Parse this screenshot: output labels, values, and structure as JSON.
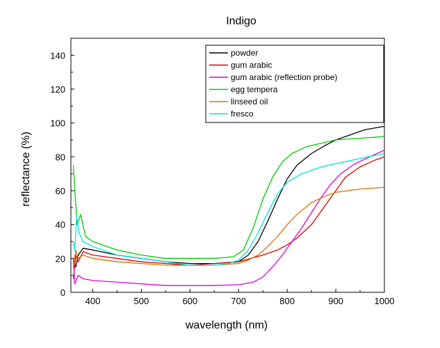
{
  "chart_data": {
    "type": "line",
    "title": "Indigo",
    "xlabel": "wavelength (nm)",
    "ylabel": "reflectance (%)",
    "xlim": [
      355,
      1000
    ],
    "ylim": [
      0,
      150
    ],
    "x_ticks": [
      400,
      500,
      600,
      700,
      800,
      900,
      1000
    ],
    "y_ticks": [
      0,
      20,
      40,
      60,
      80,
      100,
      120,
      140
    ],
    "legend_position": "top-right",
    "grid": false,
    "series": [
      {
        "name": "powder",
        "color": "#000000",
        "points": [
          [
            360,
            18
          ],
          [
            365,
            15
          ],
          [
            370,
            22
          ],
          [
            380,
            26
          ],
          [
            400,
            25
          ],
          [
            450,
            22
          ],
          [
            500,
            20
          ],
          [
            550,
            18
          ],
          [
            600,
            17
          ],
          [
            650,
            17
          ],
          [
            700,
            18
          ],
          [
            720,
            22
          ],
          [
            740,
            30
          ],
          [
            760,
            42
          ],
          [
            780,
            55
          ],
          [
            800,
            67
          ],
          [
            820,
            75
          ],
          [
            850,
            82
          ],
          [
            880,
            87
          ],
          [
            900,
            90
          ],
          [
            930,
            93
          ],
          [
            960,
            96
          ],
          [
            1000,
            98
          ]
        ]
      },
      {
        "name": "gum arabic",
        "color": "#dd0000",
        "points": [
          [
            360,
            8
          ],
          [
            365,
            22
          ],
          [
            370,
            18
          ],
          [
            380,
            24
          ],
          [
            400,
            22
          ],
          [
            450,
            20
          ],
          [
            500,
            18
          ],
          [
            550,
            17
          ],
          [
            600,
            16
          ],
          [
            650,
            17
          ],
          [
            700,
            18
          ],
          [
            750,
            22
          ],
          [
            780,
            25
          ],
          [
            800,
            28
          ],
          [
            820,
            32
          ],
          [
            850,
            40
          ],
          [
            880,
            52
          ],
          [
            900,
            60
          ],
          [
            920,
            68
          ],
          [
            950,
            74
          ],
          [
            980,
            78
          ],
          [
            1000,
            80
          ]
        ]
      },
      {
        "name": "gum arabic (reflection probe)",
        "color": "#e000e0",
        "points": [
          [
            360,
            20
          ],
          [
            363,
            5
          ],
          [
            370,
            10
          ],
          [
            380,
            8
          ],
          [
            400,
            7
          ],
          [
            450,
            6
          ],
          [
            500,
            5
          ],
          [
            550,
            4
          ],
          [
            600,
            4
          ],
          [
            650,
            4
          ],
          [
            700,
            4.5
          ],
          [
            730,
            6
          ],
          [
            750,
            9
          ],
          [
            770,
            15
          ],
          [
            790,
            22
          ],
          [
            810,
            30
          ],
          [
            830,
            38
          ],
          [
            850,
            47
          ],
          [
            870,
            56
          ],
          [
            890,
            64
          ],
          [
            910,
            70
          ],
          [
            940,
            76
          ],
          [
            970,
            80
          ],
          [
            1000,
            84
          ]
        ]
      },
      {
        "name": "egg tempera",
        "color": "#00cc00",
        "points": [
          [
            360,
            75
          ],
          [
            363,
            60
          ],
          [
            368,
            40
          ],
          [
            375,
            46
          ],
          [
            385,
            33
          ],
          [
            400,
            30
          ],
          [
            450,
            25
          ],
          [
            500,
            22
          ],
          [
            550,
            20
          ],
          [
            600,
            20
          ],
          [
            650,
            20
          ],
          [
            690,
            21
          ],
          [
            710,
            25
          ],
          [
            730,
            38
          ],
          [
            750,
            55
          ],
          [
            770,
            68
          ],
          [
            790,
            77
          ],
          [
            810,
            82
          ],
          [
            840,
            86
          ],
          [
            870,
            88
          ],
          [
            900,
            90
          ],
          [
            950,
            91
          ],
          [
            1000,
            92
          ]
        ]
      },
      {
        "name": "linseed oil",
        "color": "#e07000",
        "points": [
          [
            360,
            15
          ],
          [
            365,
            25
          ],
          [
            370,
            20
          ],
          [
            380,
            22
          ],
          [
            400,
            20
          ],
          [
            450,
            18
          ],
          [
            500,
            17
          ],
          [
            550,
            16
          ],
          [
            600,
            16
          ],
          [
            650,
            16
          ],
          [
            700,
            17
          ],
          [
            720,
            19
          ],
          [
            740,
            22
          ],
          [
            760,
            27
          ],
          [
            780,
            33
          ],
          [
            800,
            40
          ],
          [
            820,
            46
          ],
          [
            850,
            53
          ],
          [
            880,
            57
          ],
          [
            900,
            59
          ],
          [
            950,
            61
          ],
          [
            1000,
            62
          ]
        ]
      },
      {
        "name": "fresco",
        "color": "#00e0e0",
        "points": [
          [
            360,
            30
          ],
          [
            363,
            25
          ],
          [
            367,
            45
          ],
          [
            372,
            35
          ],
          [
            380,
            30
          ],
          [
            400,
            27
          ],
          [
            450,
            22
          ],
          [
            500,
            20
          ],
          [
            550,
            18
          ],
          [
            600,
            16
          ],
          [
            650,
            16
          ],
          [
            680,
            17
          ],
          [
            700,
            19
          ],
          [
            720,
            25
          ],
          [
            740,
            35
          ],
          [
            760,
            47
          ],
          [
            780,
            58
          ],
          [
            800,
            65
          ],
          [
            830,
            70
          ],
          [
            870,
            74
          ],
          [
            900,
            76
          ],
          [
            950,
            79
          ],
          [
            1000,
            82
          ]
        ]
      }
    ]
  }
}
